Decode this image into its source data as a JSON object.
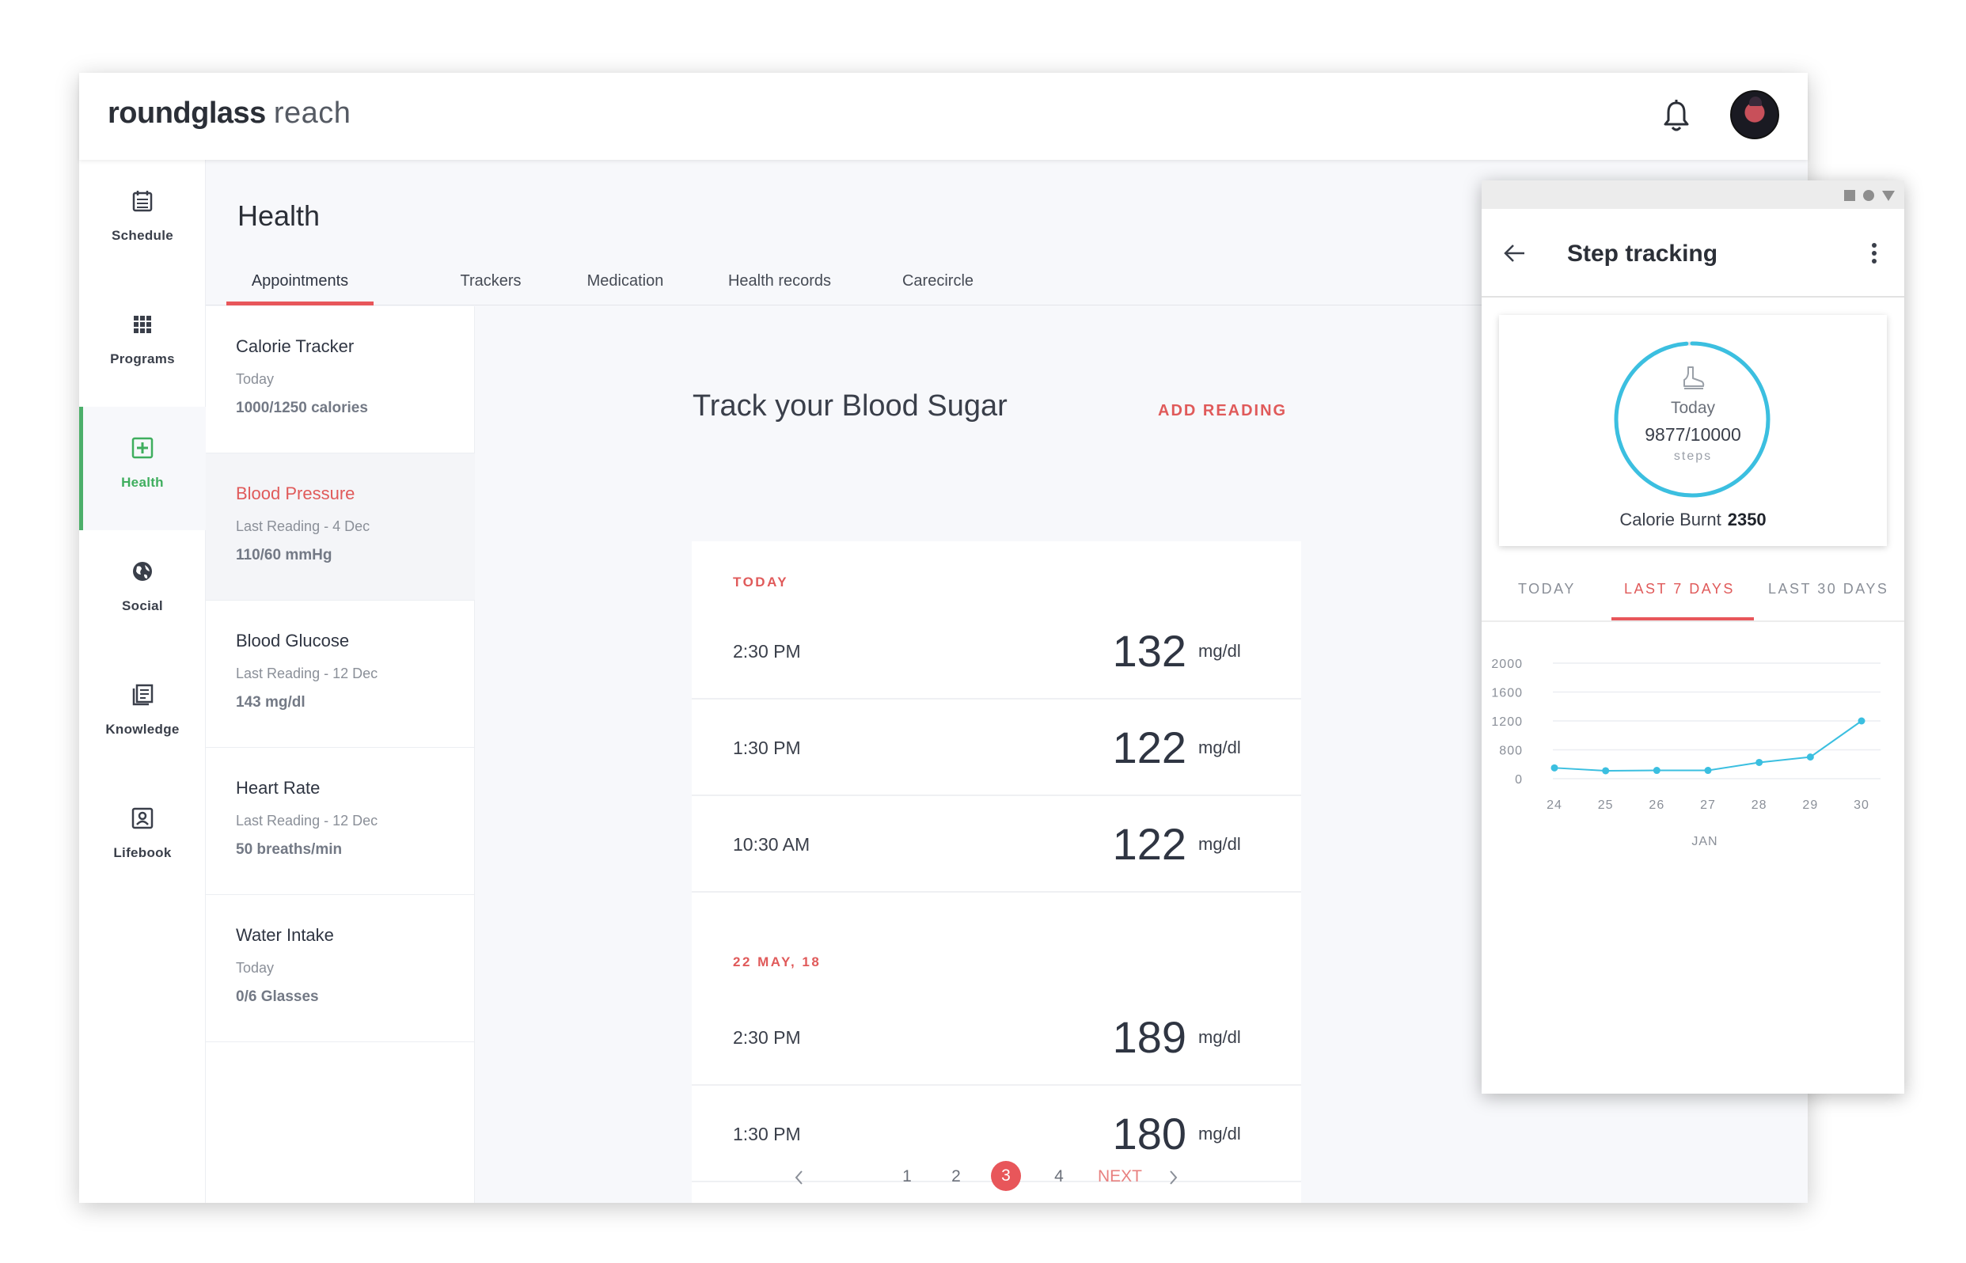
{
  "app": {
    "brand": "roundglass",
    "brand_sub": "reach"
  },
  "sidenav": {
    "items": [
      {
        "label": "Schedule",
        "icon": "calendar-icon"
      },
      {
        "label": "Programs",
        "icon": "grid-icon"
      },
      {
        "label": "Health",
        "icon": "plus-box-icon",
        "active": true
      },
      {
        "label": "Social",
        "icon": "globe-icon"
      },
      {
        "label": "Knowledge",
        "icon": "book-icon"
      },
      {
        "label": "Lifebook",
        "icon": "portrait-icon"
      }
    ]
  },
  "header": {
    "title": "Health"
  },
  "tabs": [
    {
      "label": "Appointments",
      "active": true
    },
    {
      "label": "Trackers"
    },
    {
      "label": "Medication"
    },
    {
      "label": "Health records"
    },
    {
      "label": "Carecircle"
    }
  ],
  "trackers": [
    {
      "title": "Calorie Tracker",
      "sub": "Today",
      "value": "1000/1250 calories"
    },
    {
      "title": "Blood Pressure",
      "sub": "Last Reading - 4 Dec",
      "value": "110/60 mmHg",
      "active": true
    },
    {
      "title": "Blood Glucose",
      "sub": "Last Reading - 12 Dec",
      "value": "143 mg/dl"
    },
    {
      "title": "Heart Rate",
      "sub": "Last Reading - 12 Dec",
      "value": "50 breaths/min"
    },
    {
      "title": "Water Intake",
      "sub": "Today",
      "value": "0/6 Glasses"
    }
  ],
  "main": {
    "title": "Track your Blood Sugar",
    "add_label": "ADD READING",
    "groups": [
      {
        "date": "TODAY",
        "readings": [
          {
            "time": "2:30 PM",
            "value": "132",
            "unit": "mg/dl"
          },
          {
            "time": "1:30 PM",
            "value": "122",
            "unit": "mg/dl"
          },
          {
            "time": "10:30 AM",
            "value": "122",
            "unit": "mg/dl"
          }
        ]
      },
      {
        "date": "22 MAY, 18",
        "readings": [
          {
            "time": "2:30 PM",
            "value": "189",
            "unit": "mg/dl"
          },
          {
            "time": "1:30 PM",
            "value": "180",
            "unit": "mg/dl"
          }
        ]
      }
    ],
    "pager": {
      "pages": [
        "1",
        "2",
        "3",
        "4"
      ],
      "current": "3",
      "next_label": "NEXT"
    }
  },
  "step_panel": {
    "title": "Step tracking",
    "ring": {
      "today_label": "Today",
      "steps": "9877/10000",
      "unit": "steps",
      "progress": 0.9877
    },
    "calorie_label": "Calorie Burnt",
    "calorie_value": "2350",
    "tabs": [
      {
        "label": "TODAY"
      },
      {
        "label": "LAST 7 DAYS",
        "active": true
      },
      {
        "label": "LAST 30 DAYS"
      }
    ]
  },
  "colors": {
    "accent": "#e8565a",
    "health": "#3fae5e",
    "ring": "#3bbfe0"
  },
  "chart_data": {
    "type": "line",
    "xlabel": "JAN",
    "x": [
      "24",
      "25",
      "26",
      "27",
      "28",
      "29",
      "30"
    ],
    "y_ticks": [
      "2000",
      "1600",
      "1200",
      "800",
      "0"
    ],
    "series": [
      {
        "values": [
          300,
          220,
          230,
          230,
          450,
          600,
          1200
        ]
      }
    ]
  }
}
